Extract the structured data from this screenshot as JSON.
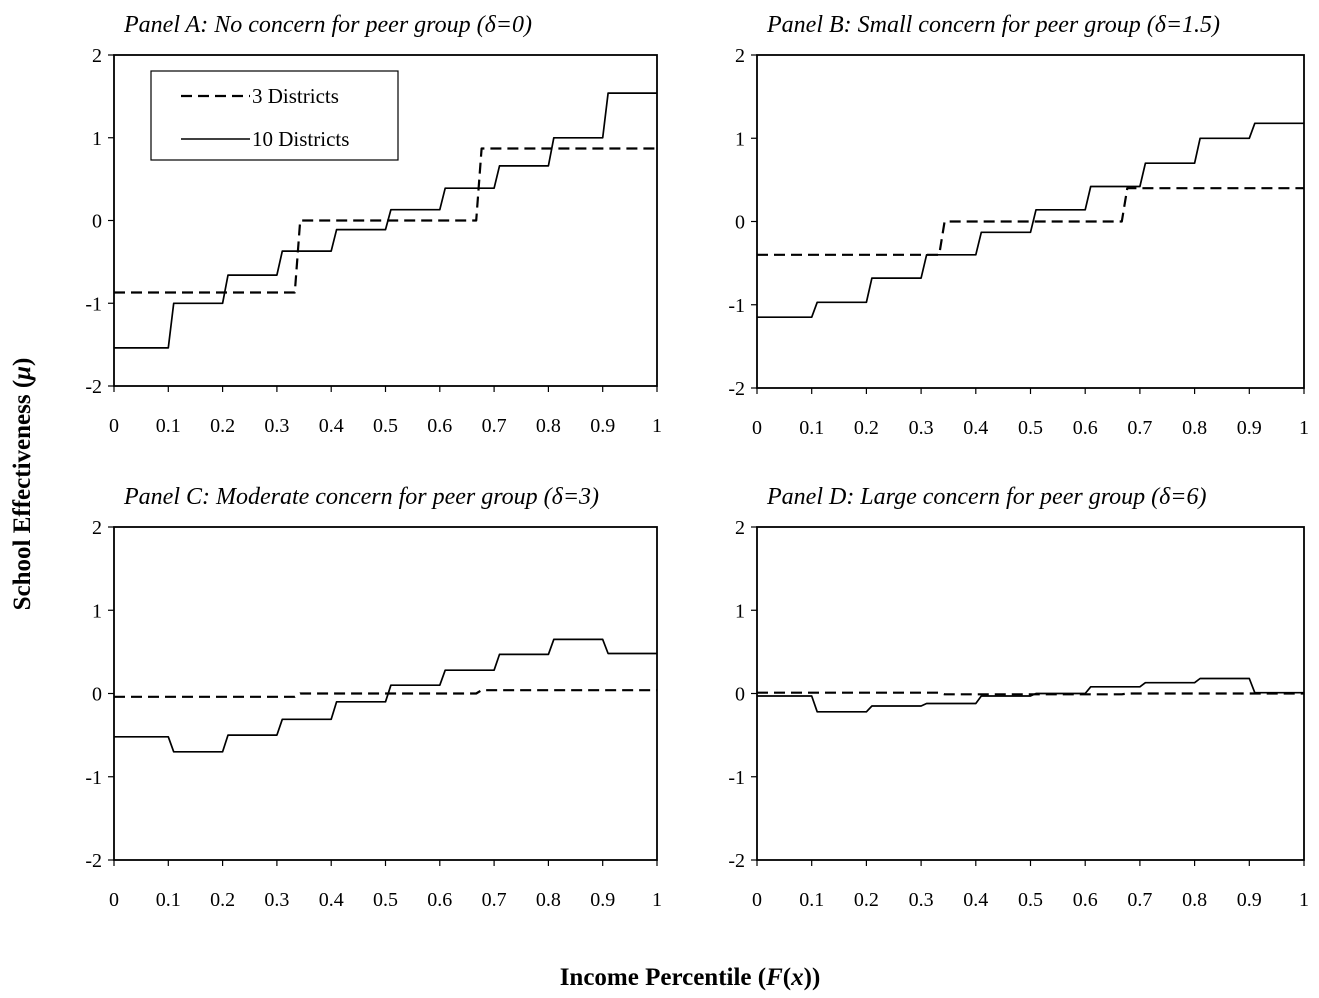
{
  "figure": {
    "ylabel": "School Effectiveness (",
    "ylabel_symbol": "μ",
    "ylabel_close": ")",
    "xlabel": "Income Percentile (",
    "xlabel_symbol_f": "F",
    "xlabel_paren_open": "(",
    "xlabel_symbol_x": "x",
    "xlabel_close": "))"
  },
  "legend": {
    "items": [
      {
        "label": "3 Districts",
        "style": "dashed"
      },
      {
        "label": "10 Districts",
        "style": "solid"
      }
    ]
  },
  "chart_data": [
    {
      "type": "line",
      "title": "Panel A:  No concern for peer group (δ=0)",
      "xlim": [
        0,
        1
      ],
      "ylim": [
        -2,
        2
      ],
      "xticks": [
        "0",
        "0.1",
        "0.2",
        "0.3",
        "0.4",
        "0.5",
        "0.6",
        "0.7",
        "0.8",
        "0.9",
        "1"
      ],
      "yticks": [
        "2",
        "1",
        "0",
        "-1",
        "-2"
      ],
      "series": [
        {
          "name": "3 Districts",
          "style": "dashed",
          "x": [
            0,
            0.333,
            0.343,
            0.667,
            0.677,
            1
          ],
          "y": [
            -0.87,
            -0.87,
            0.0,
            0.0,
            0.87,
            0.87
          ]
        },
        {
          "name": "10 Districts",
          "style": "solid",
          "x": [
            0,
            0.1,
            0.11,
            0.2,
            0.21,
            0.3,
            0.31,
            0.4,
            0.41,
            0.5,
            0.51,
            0.6,
            0.61,
            0.7,
            0.71,
            0.8,
            0.81,
            0.9,
            0.91,
            1
          ],
          "y": [
            -1.54,
            -1.54,
            -1.0,
            -1.0,
            -0.66,
            -0.66,
            -0.37,
            -0.37,
            -0.11,
            -0.11,
            0.13,
            0.13,
            0.39,
            0.39,
            0.66,
            0.66,
            1.0,
            1.0,
            1.54,
            1.54
          ]
        }
      ]
    },
    {
      "type": "line",
      "title": "Panel B:  Small concern for peer group (δ=1.5)",
      "xlim": [
        0,
        1
      ],
      "ylim": [
        -2,
        2
      ],
      "xticks": [
        "0",
        "0.1",
        "0.2",
        "0.3",
        "0.4",
        "0.5",
        "0.6",
        "0.7",
        "0.8",
        "0.9",
        "1"
      ],
      "yticks": [
        "2",
        "1",
        "0",
        "-1",
        "-2"
      ],
      "series": [
        {
          "name": "3 Districts",
          "style": "dashed",
          "x": [
            0,
            0.333,
            0.343,
            0.667,
            0.677,
            1
          ],
          "y": [
            -0.4,
            -0.4,
            0.0,
            0.0,
            0.4,
            0.4
          ]
        },
        {
          "name": "10 Districts",
          "style": "solid",
          "x": [
            0,
            0.1,
            0.11,
            0.2,
            0.21,
            0.3,
            0.31,
            0.4,
            0.41,
            0.5,
            0.51,
            0.6,
            0.61,
            0.7,
            0.71,
            0.8,
            0.81,
            0.9,
            0.91,
            1
          ],
          "y": [
            -1.15,
            -1.15,
            -0.97,
            -0.97,
            -0.68,
            -0.68,
            -0.4,
            -0.4,
            -0.13,
            -0.13,
            0.14,
            0.14,
            0.42,
            0.42,
            0.7,
            0.7,
            1.0,
            1.0,
            1.18,
            1.18
          ]
        }
      ]
    },
    {
      "type": "line",
      "title": "Panel C:  Moderate concern for peer group (δ=3)",
      "xlim": [
        0,
        1
      ],
      "ylim": [
        -2,
        2
      ],
      "xticks": [
        "0",
        "0.1",
        "0.2",
        "0.3",
        "0.4",
        "0.5",
        "0.6",
        "0.7",
        "0.8",
        "0.9",
        "1"
      ],
      "yticks": [
        "2",
        "1",
        "0",
        "-1",
        "-2"
      ],
      "series": [
        {
          "name": "3 Districts",
          "style": "dashed",
          "x": [
            0,
            0.333,
            0.343,
            0.667,
            0.677,
            1
          ],
          "y": [
            -0.04,
            -0.04,
            0.0,
            0.0,
            0.04,
            0.04
          ]
        },
        {
          "name": "10 Districts",
          "style": "solid",
          "x": [
            0,
            0.1,
            0.11,
            0.2,
            0.21,
            0.3,
            0.31,
            0.4,
            0.41,
            0.5,
            0.51,
            0.6,
            0.61,
            0.7,
            0.71,
            0.8,
            0.81,
            0.9,
            0.91,
            1
          ],
          "y": [
            -0.52,
            -0.52,
            -0.7,
            -0.7,
            -0.5,
            -0.5,
            -0.31,
            -0.31,
            -0.1,
            -0.1,
            0.1,
            0.1,
            0.28,
            0.28,
            0.47,
            0.47,
            0.65,
            0.65,
            0.48,
            0.48
          ]
        }
      ]
    },
    {
      "type": "line",
      "title": "Panel D:  Large concern for peer group (δ=6)",
      "xlim": [
        0,
        1
      ],
      "ylim": [
        -2,
        2
      ],
      "xticks": [
        "0",
        "0.1",
        "0.2",
        "0.3",
        "0.4",
        "0.5",
        "0.6",
        "0.7",
        "0.8",
        "0.9",
        "1"
      ],
      "yticks": [
        "2",
        "1",
        "0",
        "-1",
        "-2"
      ],
      "series": [
        {
          "name": "3 Districts",
          "style": "dashed",
          "x": [
            0,
            0.333,
            0.343,
            0.667,
            0.677,
            1
          ],
          "y": [
            0.01,
            0.01,
            -0.01,
            -0.01,
            0.0,
            0.0
          ]
        },
        {
          "name": "10 Districts",
          "style": "solid",
          "x": [
            0,
            0.1,
            0.11,
            0.2,
            0.21,
            0.3,
            0.31,
            0.4,
            0.41,
            0.5,
            0.51,
            0.6,
            0.61,
            0.7,
            0.71,
            0.8,
            0.81,
            0.9,
            0.91,
            1
          ],
          "y": [
            -0.03,
            -0.03,
            -0.22,
            -0.22,
            -0.15,
            -0.15,
            -0.12,
            -0.12,
            -0.03,
            -0.03,
            0.0,
            0.0,
            0.08,
            0.08,
            0.13,
            0.13,
            0.18,
            0.18,
            0.01,
            0.01
          ]
        }
      ]
    }
  ]
}
